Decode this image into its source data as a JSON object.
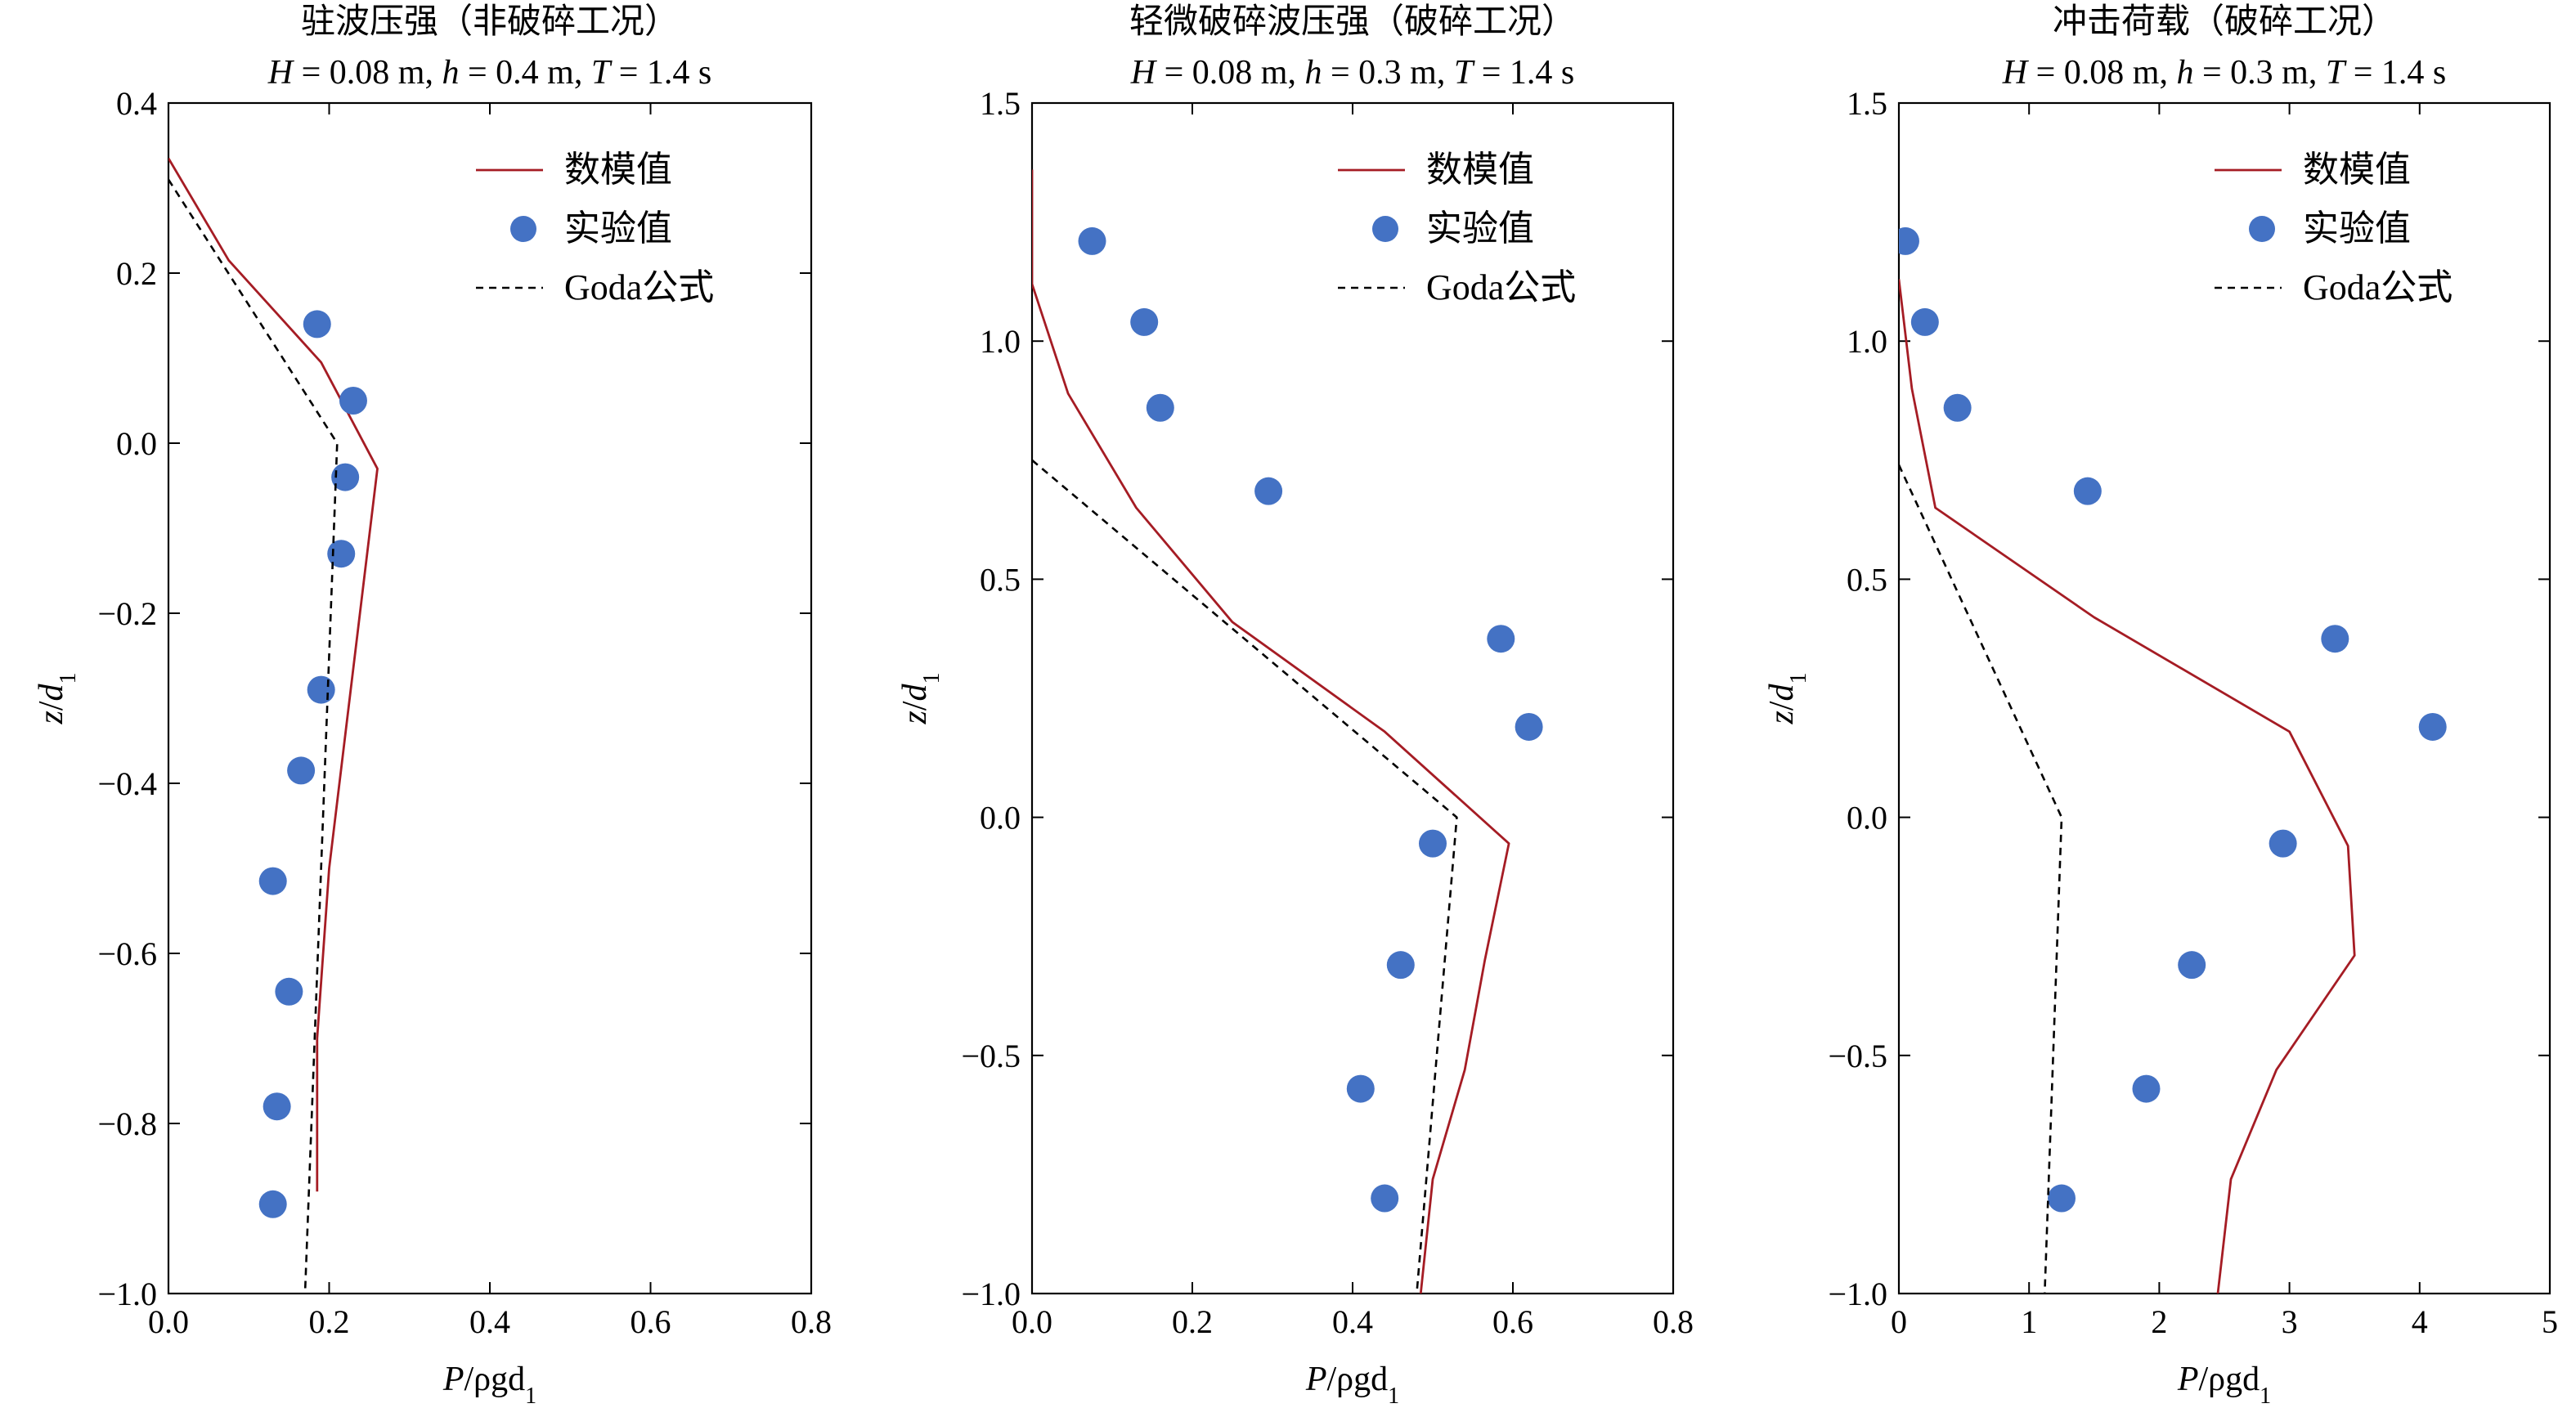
{
  "colors": {
    "model": "#a51c24",
    "experiment": "#4472c4",
    "goda": "#000000"
  },
  "chart_data": [
    {
      "type": "line",
      "title": "驻波压强（非破碎工况）",
      "subtitle": "H = 0.08 m, h = 0.4 m, T = 1.4 s",
      "xlabel": "P/ρgd₁",
      "ylabel": "z/d₁",
      "xlim": [
        0,
        0.8
      ],
      "ylim": [
        -1.0,
        0.4
      ],
      "xticks": [
        0,
        0.2,
        0.4,
        0.6,
        0.8
      ],
      "xtick_labels": [
        "0.0",
        "0.2",
        "0.4",
        "0.6",
        "0.8"
      ],
      "yticks": [
        -1.0,
        -0.8,
        -0.6,
        -0.4,
        -0.2,
        0.0,
        0.2,
        0.4
      ],
      "ytick_labels": [
        "−1.0",
        "−0.8",
        "−0.6",
        "−0.4",
        "−0.2",
        "0.0",
        "0.2",
        "0.4"
      ],
      "legend": [
        "数模值",
        "实验值",
        "Goda公式"
      ],
      "legend_position": "top-right",
      "series": [
        {
          "name": "数模值",
          "kind": "line",
          "x": [
            0.0,
            0.075,
            0.19,
            0.26,
            0.2,
            0.185,
            0.185
          ],
          "y": [
            0.335,
            0.215,
            0.095,
            -0.03,
            -0.5,
            -0.7,
            -0.88
          ]
        },
        {
          "name": "实验值",
          "kind": "scatter",
          "x": [
            0.185,
            0.23,
            0.22,
            0.215,
            0.19,
            0.165,
            0.13,
            0.15,
            0.135,
            0.13
          ],
          "y": [
            0.14,
            0.05,
            -0.04,
            -0.13,
            -0.29,
            -0.385,
            -0.515,
            -0.645,
            -0.78,
            -0.895
          ]
        },
        {
          "name": "Goda公式",
          "kind": "dashed",
          "x": [
            0.0,
            0.21,
            0.17
          ],
          "y": [
            0.31,
            0.0,
            -1.0
          ]
        }
      ]
    },
    {
      "type": "line",
      "title": "轻微破碎波压强（破碎工况）",
      "subtitle": "H = 0.08 m, h = 0.3 m, T = 1.4 s",
      "xlabel": "P/ρgd₁",
      "ylabel": "z/d₁",
      "xlim": [
        0,
        0.8
      ],
      "ylim": [
        -1.0,
        1.5
      ],
      "xticks": [
        0,
        0.2,
        0.4,
        0.6,
        0.8
      ],
      "xtick_labels": [
        "0.0",
        "0.2",
        "0.4",
        "0.6",
        "0.8"
      ],
      "yticks": [
        -1.0,
        -0.5,
        0.0,
        0.5,
        1.0,
        1.5
      ],
      "ytick_labels": [
        "−1.0",
        "−0.5",
        "0.0",
        "0.5",
        "1.0",
        "1.5"
      ],
      "legend": [
        "数模值",
        "实验值",
        "Goda公式"
      ],
      "legend_position": "top-right",
      "series": [
        {
          "name": "数模值",
          "kind": "line",
          "x": [
            0.0,
            0.0,
            0.045,
            0.13,
            0.25,
            0.44,
            0.595,
            0.565,
            0.54,
            0.5,
            0.485
          ],
          "y": [
            1.36,
            1.12,
            0.89,
            0.65,
            0.41,
            0.18,
            -0.055,
            -0.3,
            -0.53,
            -0.76,
            -1.0
          ]
        },
        {
          "name": "实验值",
          "kind": "scatter",
          "x": [
            0.075,
            0.14,
            0.16,
            0.295,
            0.585,
            0.62,
            0.5,
            0.46,
            0.41,
            0.44
          ],
          "y": [
            1.21,
            1.04,
            0.86,
            0.685,
            0.375,
            0.19,
            -0.055,
            -0.31,
            -0.57,
            -0.8
          ]
        },
        {
          "name": "Goda公式",
          "kind": "dashed",
          "x": [
            0.0,
            0.53,
            0.48
          ],
          "y": [
            0.75,
            0.0,
            -1.0
          ]
        }
      ]
    },
    {
      "type": "line",
      "title": "冲击荷载（破碎工况）",
      "subtitle": "H = 0.08 m, h = 0.3 m, T = 1.4 s",
      "xlabel": "P/ρgd₁",
      "ylabel": "z/d₁",
      "xlim": [
        0,
        5
      ],
      "ylim": [
        -1.0,
        1.5
      ],
      "xticks": [
        0,
        1,
        2,
        3,
        4,
        5
      ],
      "xtick_labels": [
        "0",
        "1",
        "2",
        "3",
        "4",
        "5"
      ],
      "yticks": [
        -1.0,
        -0.5,
        0.0,
        0.5,
        1.0,
        1.5
      ],
      "ytick_labels": [
        "−1.0",
        "−0.5",
        "0.0",
        "0.5",
        "1.0",
        "1.5"
      ],
      "legend": [
        "数模值",
        "实验值",
        "Goda公式"
      ],
      "legend_position": "top-right",
      "series": [
        {
          "name": "数模值",
          "kind": "line",
          "x": [
            0.0,
            0.1,
            0.28,
            1.5,
            3.0,
            3.45,
            3.5,
            2.9,
            2.55,
            2.45
          ],
          "y": [
            1.13,
            0.9,
            0.65,
            0.42,
            0.18,
            -0.06,
            -0.29,
            -0.53,
            -0.76,
            -1.0
          ]
        },
        {
          "name": "实验值",
          "kind": "scatter",
          "x": [
            0.05,
            0.2,
            0.45,
            1.45,
            3.35,
            4.1,
            2.95,
            2.25,
            1.9,
            1.25
          ],
          "y": [
            1.21,
            1.04,
            0.86,
            0.685,
            0.375,
            0.19,
            -0.055,
            -0.31,
            -0.57,
            -0.8
          ]
        },
        {
          "name": "Goda公式",
          "kind": "dashed",
          "x": [
            0.0,
            1.25,
            1.12
          ],
          "y": [
            0.74,
            0.0,
            -1.0
          ]
        }
      ]
    }
  ]
}
